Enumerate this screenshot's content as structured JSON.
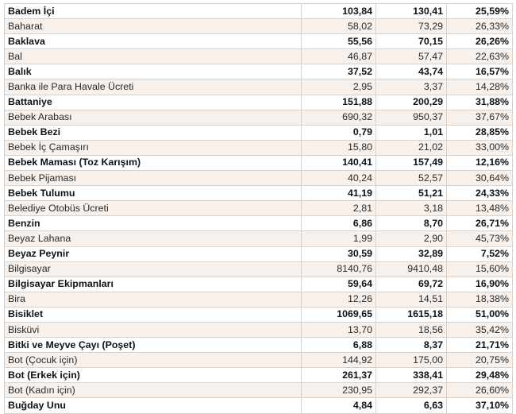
{
  "rows": [
    {
      "name": "Badem İçi",
      "v1": "103,84",
      "v2": "130,41",
      "pct": "25,59%",
      "bold": true
    },
    {
      "name": "Baharat",
      "v1": "58,02",
      "v2": "73,29",
      "pct": "26,33%",
      "bold": false
    },
    {
      "name": "Baklava",
      "v1": "55,56",
      "v2": "70,15",
      "pct": "26,26%",
      "bold": true
    },
    {
      "name": "Bal",
      "v1": "46,87",
      "v2": "57,47",
      "pct": "22,63%",
      "bold": false
    },
    {
      "name": "Balık",
      "v1": "37,52",
      "v2": "43,74",
      "pct": "16,57%",
      "bold": true
    },
    {
      "name": "Banka ile Para Havale Ücreti",
      "v1": "2,95",
      "v2": "3,37",
      "pct": "14,28%",
      "bold": false
    },
    {
      "name": "Battaniye",
      "v1": "151,88",
      "v2": "200,29",
      "pct": "31,88%",
      "bold": true
    },
    {
      "name": "Bebek Arabası",
      "v1": "690,32",
      "v2": "950,37",
      "pct": "37,67%",
      "bold": false
    },
    {
      "name": "Bebek Bezi",
      "v1": "0,79",
      "v2": "1,01",
      "pct": "28,85%",
      "bold": true
    },
    {
      "name": "Bebek İç Çamaşırı",
      "v1": "15,80",
      "v2": "21,02",
      "pct": "33,00%",
      "bold": false
    },
    {
      "name": "Bebek Maması (Toz Karışım)",
      "v1": "140,41",
      "v2": "157,49",
      "pct": "12,16%",
      "bold": true
    },
    {
      "name": "Bebek Pijaması",
      "v1": "40,24",
      "v2": "52,57",
      "pct": "30,64%",
      "bold": false
    },
    {
      "name": "Bebek Tulumu",
      "v1": "41,19",
      "v2": "51,21",
      "pct": "24,33%",
      "bold": true
    },
    {
      "name": "Belediye Otobüs Ücreti",
      "v1": "2,81",
      "v2": "3,18",
      "pct": "13,48%",
      "bold": false
    },
    {
      "name": "Benzin",
      "v1": "6,86",
      "v2": "8,70",
      "pct": "26,71%",
      "bold": true
    },
    {
      "name": "Beyaz Lahana",
      "v1": "1,99",
      "v2": "2,90",
      "pct": "45,73%",
      "bold": false
    },
    {
      "name": "Beyaz Peynir",
      "v1": "30,59",
      "v2": "32,89",
      "pct": "7,52%",
      "bold": true
    },
    {
      "name": "Bilgisayar",
      "v1": "8140,76",
      "v2": "9410,48",
      "pct": "15,60%",
      "bold": false
    },
    {
      "name": "Bilgisayar Ekipmanları",
      "v1": "59,64",
      "v2": "69,72",
      "pct": "16,90%",
      "bold": true
    },
    {
      "name": "Bira",
      "v1": "12,26",
      "v2": "14,51",
      "pct": "18,38%",
      "bold": false
    },
    {
      "name": "Bisiklet",
      "v1": "1069,65",
      "v2": "1615,18",
      "pct": "51,00%",
      "bold": true
    },
    {
      "name": "Bisküvi",
      "v1": "13,70",
      "v2": "18,56",
      "pct": "35,42%",
      "bold": false
    },
    {
      "name": "Bitki ve Meyve Çayı (Poşet)",
      "v1": "6,88",
      "v2": "8,37",
      "pct": "21,71%",
      "bold": true
    },
    {
      "name": "Bot (Çocuk için)",
      "v1": "144,92",
      "v2": "175,00",
      "pct": "20,75%",
      "bold": false
    },
    {
      "name": "Bot (Erkek için)",
      "v1": "261,37",
      "v2": "338,41",
      "pct": "29,48%",
      "bold": true
    },
    {
      "name": "Bot (Kadın için)",
      "v1": "230,95",
      "v2": "292,37",
      "pct": "26,60%",
      "bold": false
    },
    {
      "name": "Buğday Unu",
      "v1": "4,84",
      "v2": "6,63",
      "pct": "37,10%",
      "bold": true
    }
  ]
}
